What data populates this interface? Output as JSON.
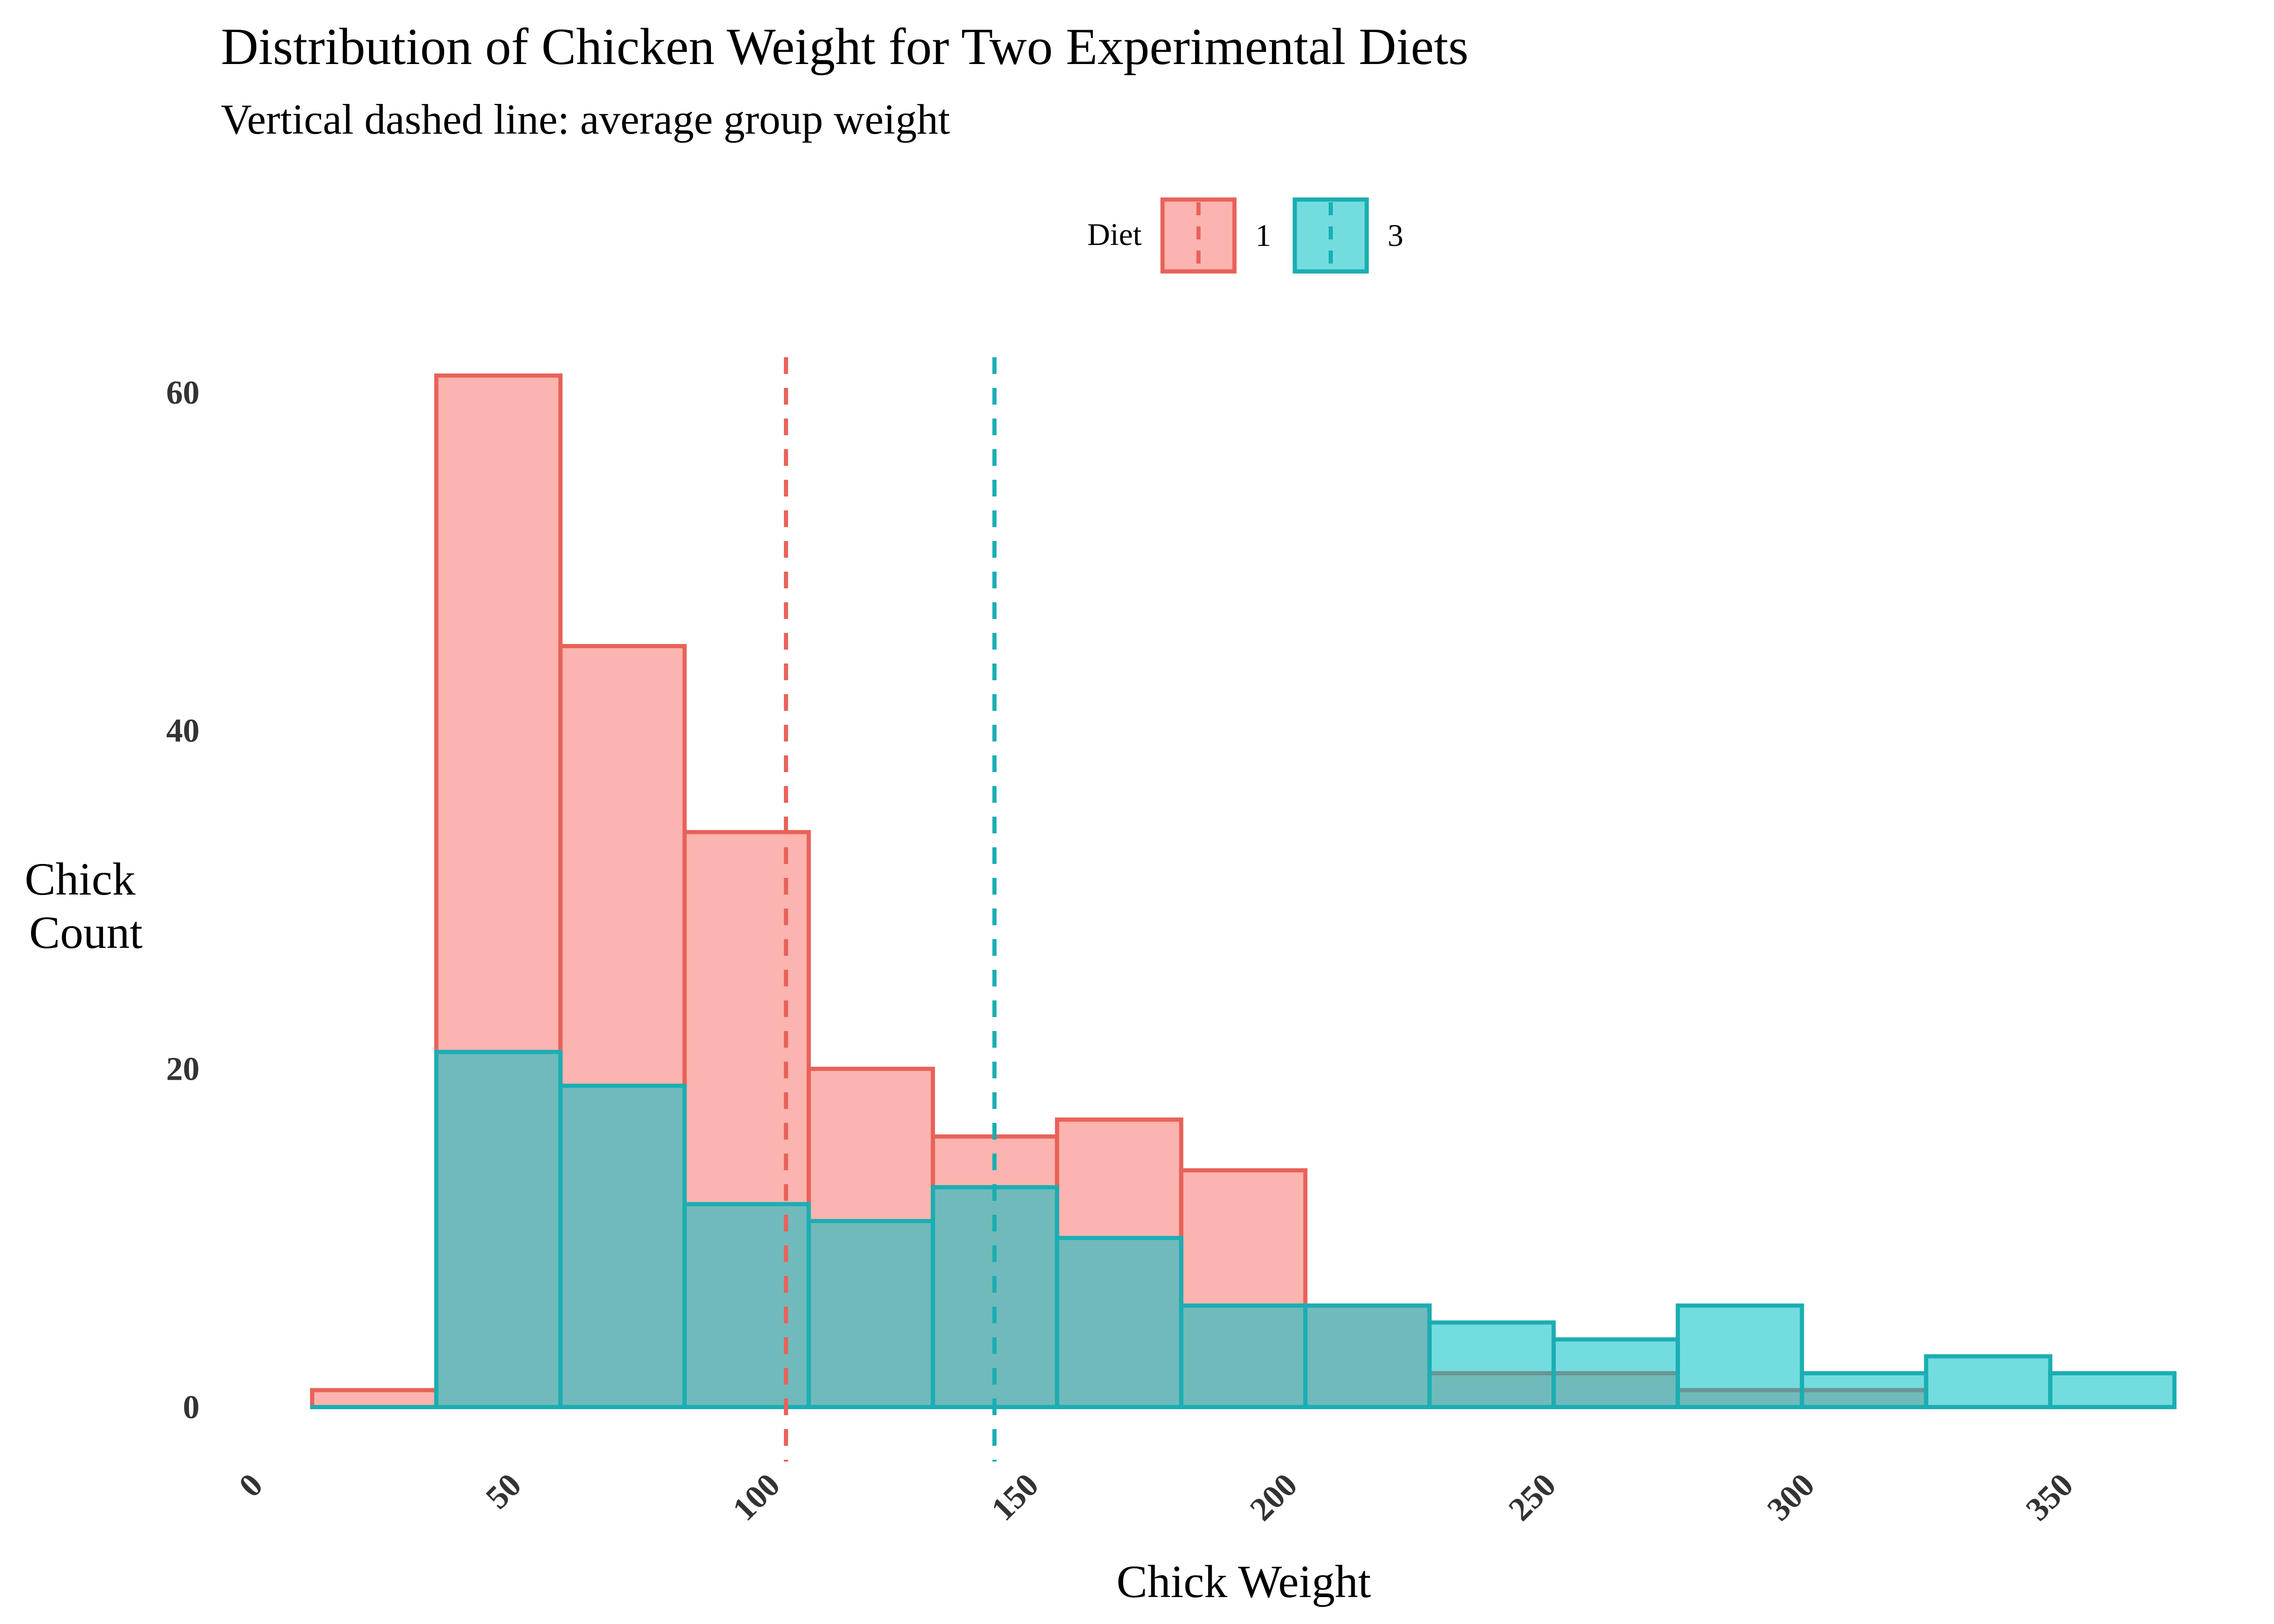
{
  "chart_data": {
    "type": "histogram",
    "title": "Distribution of Chicken Weight for Two Experimental Diets",
    "subtitle": "Vertical dashed line: average group weight",
    "xlabel": "Chick Weight",
    "ylabel": [
      "Chick",
      "Count"
    ],
    "xlim": [
      0,
      375
    ],
    "ylim": [
      -3.5,
      64
    ],
    "x_ticks": [
      0,
      50,
      100,
      150,
      200,
      250,
      300,
      350
    ],
    "y_ticks": [
      0,
      20,
      40,
      60
    ],
    "grid": false,
    "legend": {
      "title": "Diet",
      "position": "top"
    },
    "bin_edges": [
      11,
      35,
      59,
      83,
      107,
      131,
      155,
      179,
      203,
      227,
      251,
      275,
      299,
      323,
      347,
      371
    ],
    "series": [
      {
        "name": "1",
        "fill": "#F8766D",
        "stroke": "#E8625A",
        "counts": [
          1,
          61,
          45,
          34,
          20,
          16,
          17,
          14,
          6,
          2,
          2,
          1,
          1,
          0,
          0
        ],
        "mean": 102.6
      },
      {
        "name": "3",
        "fill": "#00BFC4",
        "stroke": "#1AAEB3",
        "counts": [
          0,
          21,
          19,
          12,
          11,
          13,
          10,
          6,
          6,
          5,
          4,
          6,
          2,
          3,
          2
        ],
        "mean": 142.9
      }
    ]
  }
}
